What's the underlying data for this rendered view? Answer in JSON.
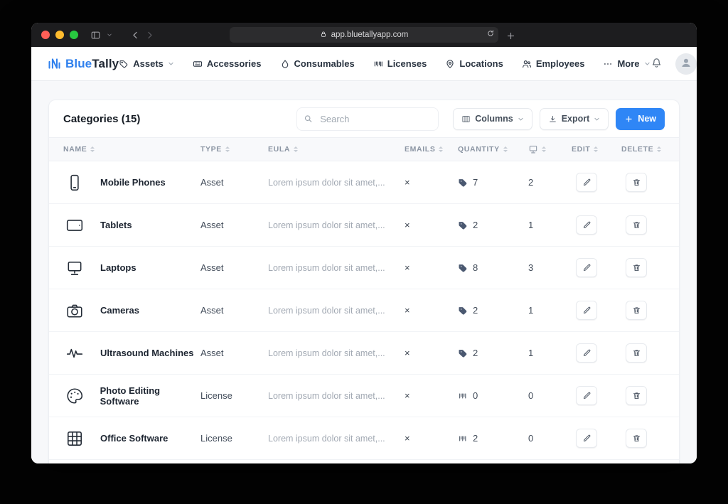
{
  "browser": {
    "url": "app.bluetallyapp.com"
  },
  "navbar": {
    "brand_blue": "Blue",
    "brand_dark": "Tally",
    "items": [
      {
        "label": "Assets",
        "icon": "tag-icon",
        "has_chevron": true
      },
      {
        "label": "Accessories",
        "icon": "keyboard-icon",
        "has_chevron": false
      },
      {
        "label": "Consumables",
        "icon": "droplet-icon",
        "has_chevron": false
      },
      {
        "label": "Licenses",
        "icon": "barcode-icon",
        "has_chevron": false
      },
      {
        "label": "Locations",
        "icon": "map-pin-icon",
        "has_chevron": false
      },
      {
        "label": "Employees",
        "icon": "people-icon",
        "has_chevron": false
      },
      {
        "label": "More",
        "icon": "ellipsis-icon",
        "has_chevron": true
      }
    ]
  },
  "toolbar": {
    "title": "Categories (15)",
    "search_placeholder": "Search",
    "columns_label": "Columns",
    "export_label": "Export",
    "new_label": "New"
  },
  "table": {
    "headers": [
      {
        "label": "NAME"
      },
      {
        "label": "TYPE"
      },
      {
        "label": "EULA"
      },
      {
        "label": "EMAILS"
      },
      {
        "label": "QUANTITY"
      },
      {
        "label": "",
        "icon": "laptop-icon"
      },
      {
        "label": "EDIT"
      },
      {
        "label": "DELETE"
      }
    ],
    "rows": [
      {
        "name": "Mobile Phones",
        "icon": "mobile-phone-icon",
        "type": "Asset",
        "eula": "Lorem ipsum dolor sit amet,...",
        "emails": "×",
        "quantity": "7",
        "quantity_icon": "tag-icon",
        "count": "2"
      },
      {
        "name": "Tablets",
        "icon": "tablet-icon",
        "type": "Asset",
        "eula": "Lorem ipsum dolor sit amet,...",
        "emails": "×",
        "quantity": "2",
        "quantity_icon": "tag-icon",
        "count": "1"
      },
      {
        "name": "Laptops",
        "icon": "laptop-icon",
        "type": "Asset",
        "eula": "Lorem ipsum dolor sit amet,...",
        "emails": "×",
        "quantity": "8",
        "quantity_icon": "tag-icon",
        "count": "3"
      },
      {
        "name": "Cameras",
        "icon": "camera-icon",
        "type": "Asset",
        "eula": "Lorem ipsum dolor sit amet,...",
        "emails": "×",
        "quantity": "2",
        "quantity_icon": "tag-icon",
        "count": "1"
      },
      {
        "name": "Ultrasound Machines",
        "icon": "waveform-icon",
        "type": "Asset",
        "eula": "Lorem ipsum dolor sit amet,...",
        "emails": "×",
        "quantity": "2",
        "quantity_icon": "tag-icon",
        "count": "1"
      },
      {
        "name": "Photo Editing Software",
        "icon": "palette-icon",
        "type": "License",
        "eula": "Lorem ipsum dolor sit amet,...",
        "emails": "×",
        "quantity": "0",
        "quantity_icon": "license-icon",
        "count": "0"
      },
      {
        "name": "Office Software",
        "icon": "grid-icon",
        "type": "License",
        "eula": "Lorem ipsum dolor sit amet,...",
        "emails": "×",
        "quantity": "2",
        "quantity_icon": "license-icon",
        "count": "0"
      }
    ]
  }
}
